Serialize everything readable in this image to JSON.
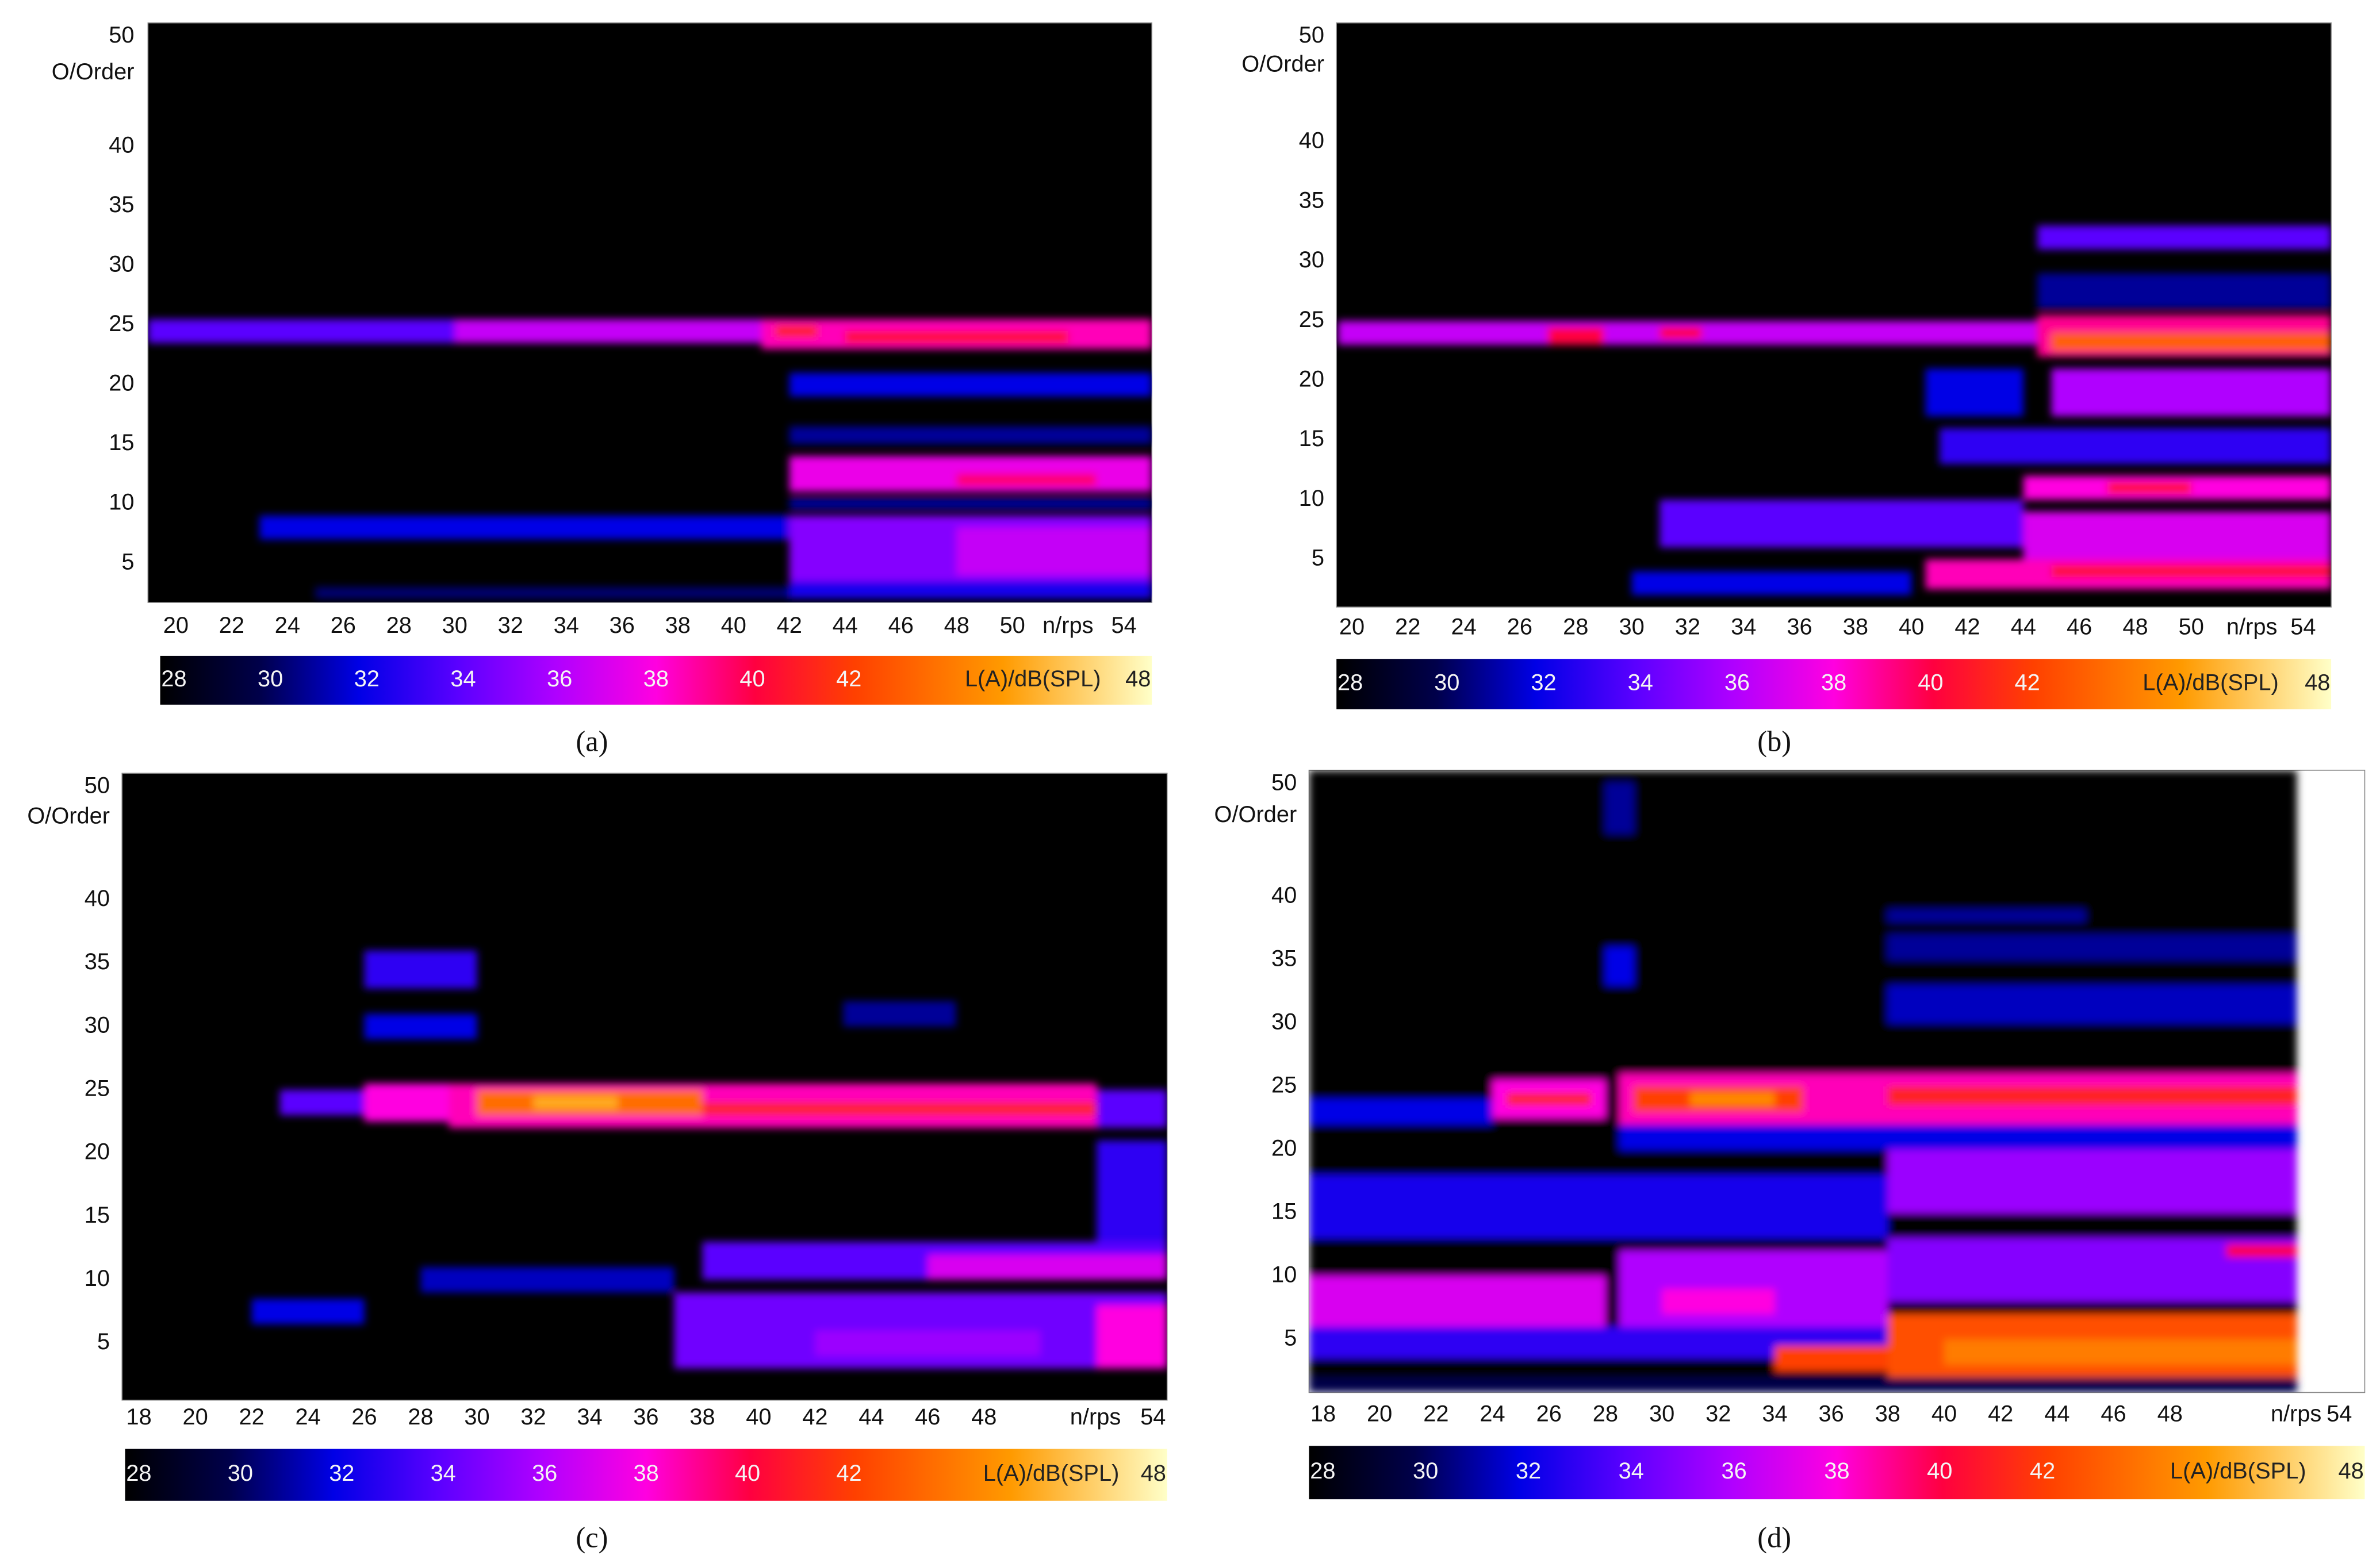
{
  "chart_data": [
    {
      "type": "heatmap",
      "caption": "(a)",
      "ylabel": "O/Order",
      "xlabel": "n/rps",
      "colorbar_label": "L(A)/dB(SPL)",
      "background": "#000000",
      "xlim": [
        19,
        55
      ],
      "xticks": [
        20,
        22,
        24,
        26,
        28,
        30,
        32,
        34,
        36,
        38,
        40,
        42,
        44,
        46,
        48,
        50,
        54
      ],
      "ylim": [
        1.7,
        50.4
      ],
      "yticks": [
        50,
        40,
        35,
        30,
        25,
        20,
        15,
        10,
        5
      ],
      "clim": [
        28,
        48
      ],
      "cticks": [
        28,
        30,
        32,
        34,
        36,
        38,
        40,
        42,
        48
      ],
      "colormap": [
        {
          "value": 28,
          "color": "#000000"
        },
        {
          "value": 30,
          "color": "#00004a"
        },
        {
          "value": 32,
          "color": "#0000e6"
        },
        {
          "value": 34,
          "color": "#5a00ff"
        },
        {
          "value": 36,
          "color": "#b000ff"
        },
        {
          "value": 38,
          "color": "#ff00e0"
        },
        {
          "value": 40,
          "color": "#ff0040"
        },
        {
          "value": 42,
          "color": "#ff4000"
        },
        {
          "value": 45,
          "color": "#ff9a00"
        },
        {
          "value": 48,
          "color": "#ffffc8"
        }
      ],
      "bands": [
        {
          "x": [
            19,
            30
          ],
          "order": [
            23.5,
            25.5
          ],
          "level": 34
        },
        {
          "x": [
            30,
            42
          ],
          "order": [
            23.5,
            25.5
          ],
          "level": 36.5
        },
        {
          "x": [
            41,
            55
          ],
          "order": [
            23,
            25.5
          ],
          "level": 38.5
        },
        {
          "x": [
            44,
            52
          ],
          "order": [
            23.5,
            24.5
          ],
          "level": 40.5
        },
        {
          "x": [
            41.5,
            43
          ],
          "order": [
            24,
            25
          ],
          "level": 41
        },
        {
          "x": [
            42,
            55
          ],
          "order": [
            19,
            21
          ],
          "level": 32
        },
        {
          "x": [
            42,
            55
          ],
          "order": [
            15,
            16.5
          ],
          "level": 31
        },
        {
          "x": [
            42,
            55
          ],
          "order": [
            11,
            14
          ],
          "level": 37.5
        },
        {
          "x": [
            48,
            53
          ],
          "order": [
            11.5,
            12.5
          ],
          "level": 39.5
        },
        {
          "x": [
            23,
            42
          ],
          "order": [
            7,
            9
          ],
          "level": 32
        },
        {
          "x": [
            42,
            55
          ],
          "order": [
            3,
            9
          ],
          "level": 35
        },
        {
          "x": [
            48,
            55
          ],
          "order": [
            4,
            8
          ],
          "level": 36.5
        },
        {
          "x": [
            42,
            55
          ],
          "order": [
            9.5,
            10.5
          ],
          "level": 31
        },
        {
          "x": [
            25,
            42
          ],
          "order": [
            2,
            3
          ],
          "level": 30.5
        },
        {
          "x": [
            42,
            55
          ],
          "order": [
            2,
            3.5
          ],
          "level": 32.5
        }
      ]
    },
    {
      "type": "heatmap",
      "caption": "(b)",
      "ylabel": "O/Order",
      "xlabel": "n/rps",
      "colorbar_label": "L(A)/dB(SPL)",
      "background": "#000000",
      "xlim": [
        19.45,
        55
      ],
      "xticks": [
        20,
        22,
        24,
        26,
        28,
        30,
        32,
        34,
        36,
        38,
        40,
        42,
        44,
        46,
        48,
        50,
        54
      ],
      "ylim": [
        1,
        50
      ],
      "yticks": [
        50,
        40,
        35,
        30,
        25,
        20,
        15,
        10,
        5
      ],
      "clim": [
        28,
        48
      ],
      "cticks": [
        28,
        30,
        32,
        34,
        36,
        38,
        40,
        42,
        48
      ],
      "colormap": [
        {
          "value": 28,
          "color": "#000000"
        },
        {
          "value": 30,
          "color": "#00004a"
        },
        {
          "value": 32,
          "color": "#0000e6"
        },
        {
          "value": 34,
          "color": "#5a00ff"
        },
        {
          "value": 36,
          "color": "#b000ff"
        },
        {
          "value": 38,
          "color": "#ff00e0"
        },
        {
          "value": 40,
          "color": "#ff0040"
        },
        {
          "value": 42,
          "color": "#ff4000"
        },
        {
          "value": 45,
          "color": "#ff9a00"
        },
        {
          "value": 48,
          "color": "#ffffc8"
        }
      ],
      "bands": [
        {
          "x": [
            19.5,
            44.5
          ],
          "order": [
            23,
            25
          ],
          "level": 36.5
        },
        {
          "x": [
            27,
            29
          ],
          "order": [
            23,
            24.5
          ],
          "level": 40
        },
        {
          "x": [
            31,
            32.5
          ],
          "order": [
            23.5,
            24.5
          ],
          "level": 40
        },
        {
          "x": [
            44.5,
            55
          ],
          "order": [
            22,
            25.5
          ],
          "level": 39
        },
        {
          "x": [
            45,
            55
          ],
          "order": [
            22.5,
            24
          ],
          "level": 43
        },
        {
          "x": [
            45,
            55
          ],
          "order": [
            17,
            21
          ],
          "level": 36
        },
        {
          "x": [
            44.5,
            55
          ],
          "order": [
            31,
            33
          ],
          "level": 34
        },
        {
          "x": [
            44.5,
            55
          ],
          "order": [
            26,
            29
          ],
          "level": 31
        },
        {
          "x": [
            41,
            55
          ],
          "order": [
            13,
            16
          ],
          "level": 33
        },
        {
          "x": [
            44,
            55
          ],
          "order": [
            10,
            12
          ],
          "level": 38
        },
        {
          "x": [
            47,
            50
          ],
          "order": [
            10.5,
            11.5
          ],
          "level": 40.5
        },
        {
          "x": [
            31,
            44
          ],
          "order": [
            6,
            10
          ],
          "level": 34
        },
        {
          "x": [
            44,
            55
          ],
          "order": [
            5,
            9
          ],
          "level": 37
        },
        {
          "x": [
            40.5,
            55
          ],
          "order": [
            2.5,
            5
          ],
          "level": 38.5
        },
        {
          "x": [
            45,
            55
          ],
          "order": [
            3.5,
            4.5
          ],
          "level": 40.5
        },
        {
          "x": [
            30,
            40
          ],
          "order": [
            2,
            4
          ],
          "level": 32
        },
        {
          "x": [
            40.5,
            44
          ],
          "order": [
            17,
            21
          ],
          "level": 32
        }
      ]
    },
    {
      "type": "heatmap",
      "caption": "(c)",
      "ylabel": "O/Order",
      "xlabel": "n/rps",
      "colorbar_label": "L(A)/dB(SPL)",
      "background": "#000000",
      "xlim": [
        17.4,
        54.5
      ],
      "xticks": [
        18,
        20,
        22,
        24,
        26,
        28,
        30,
        32,
        34,
        36,
        38,
        40,
        42,
        44,
        46,
        48,
        54
      ],
      "ylim": [
        0.5,
        50
      ],
      "yticks": [
        50,
        40,
        35,
        30,
        25,
        20,
        15,
        10,
        5
      ],
      "clim": [
        28,
        48
      ],
      "cticks": [
        28,
        30,
        32,
        34,
        36,
        38,
        40,
        42,
        48
      ],
      "colormap": [
        {
          "value": 28,
          "color": "#000000"
        },
        {
          "value": 30,
          "color": "#00004a"
        },
        {
          "value": 32,
          "color": "#0000e6"
        },
        {
          "value": 34,
          "color": "#5a00ff"
        },
        {
          "value": 36,
          "color": "#b000ff"
        },
        {
          "value": 38,
          "color": "#ff00e0"
        },
        {
          "value": 40,
          "color": "#ff0040"
        },
        {
          "value": 42,
          "color": "#ff4000"
        },
        {
          "value": 45,
          "color": "#ff9a00"
        },
        {
          "value": 48,
          "color": "#ffffc8"
        }
      ],
      "bands": [
        {
          "x": [
            23,
            26
          ],
          "order": [
            23,
            25
          ],
          "level": 34
        },
        {
          "x": [
            26,
            29
          ],
          "order": [
            22.5,
            25.5
          ],
          "level": 38
        },
        {
          "x": [
            29,
            52
          ],
          "order": [
            22,
            25.5
          ],
          "level": 38.5
        },
        {
          "x": [
            30,
            38
          ],
          "order": [
            23,
            25
          ],
          "level": 43.5
        },
        {
          "x": [
            32,
            35
          ],
          "order": [
            23.5,
            24.5
          ],
          "level": 45.5
        },
        {
          "x": [
            38,
            52
          ],
          "order": [
            23,
            24
          ],
          "level": 41
        },
        {
          "x": [
            52,
            54.5
          ],
          "order": [
            22,
            25
          ],
          "level": 34
        },
        {
          "x": [
            26,
            30
          ],
          "order": [
            33,
            36
          ],
          "level": 33
        },
        {
          "x": [
            26,
            30
          ],
          "order": [
            29,
            31
          ],
          "level": 32
        },
        {
          "x": [
            43,
            47
          ],
          "order": [
            30,
            32
          ],
          "level": 31
        },
        {
          "x": [
            38,
            54.5
          ],
          "order": [
            10,
            13
          ],
          "level": 34
        },
        {
          "x": [
            46,
            54.5
          ],
          "order": [
            10,
            12
          ],
          "level": 37
        },
        {
          "x": [
            37,
            54.5
          ],
          "order": [
            3,
            9
          ],
          "level": 34.5
        },
        {
          "x": [
            42,
            50
          ],
          "order": [
            4,
            6
          ],
          "level": 35.5
        },
        {
          "x": [
            52,
            54.5
          ],
          "order": [
            3,
            8
          ],
          "level": 38
        },
        {
          "x": [
            52,
            54.5
          ],
          "order": [
            13,
            21
          ],
          "level": 33
        },
        {
          "x": [
            28,
            37
          ],
          "order": [
            9,
            11
          ],
          "level": 31.5
        },
        {
          "x": [
            22,
            26
          ],
          "order": [
            6.5,
            8.5
          ],
          "level": 32
        }
      ]
    },
    {
      "type": "heatmap",
      "caption": "(d)",
      "ylabel": "O/Order",
      "xlabel": "n/rps",
      "colorbar_label": "L(A)/dB(SPL)",
      "background": "#ffffff",
      "xlim": [
        17.5,
        54.9
      ],
      "xticks": [
        18,
        20,
        22,
        24,
        26,
        28,
        30,
        32,
        34,
        36,
        38,
        40,
        42,
        44,
        46,
        48,
        54
      ],
      "ylim": [
        0.8,
        50
      ],
      "yticks": [
        50,
        40,
        35,
        30,
        25,
        20,
        15,
        10,
        5
      ],
      "clim": [
        28,
        48
      ],
      "cticks": [
        28,
        30,
        32,
        34,
        36,
        38,
        40,
        42,
        48
      ],
      "colormap": [
        {
          "value": 28,
          "color": "#000000"
        },
        {
          "value": 30,
          "color": "#00004a"
        },
        {
          "value": 32,
          "color": "#0000e6"
        },
        {
          "value": 34,
          "color": "#5a00ff"
        },
        {
          "value": 36,
          "color": "#b000ff"
        },
        {
          "value": 38,
          "color": "#ff00e0"
        },
        {
          "value": 40,
          "color": "#ff0040"
        },
        {
          "value": 42,
          "color": "#ff4000"
        },
        {
          "value": 45,
          "color": "#ff9a00"
        },
        {
          "value": 48,
          "color": "#ffffc8"
        }
      ],
      "bands": [
        {
          "x": [
            17.5,
            52.5
          ],
          "order": [
            0.8,
            50
          ],
          "level": 28
        },
        {
          "x": [
            24,
            28
          ],
          "order": [
            22.5,
            25.5
          ],
          "level": 38
        },
        {
          "x": [
            24.5,
            27.5
          ],
          "order": [
            23.5,
            24.5
          ],
          "level": 41
        },
        {
          "x": [
            28.5,
            52.5
          ],
          "order": [
            22,
            26
          ],
          "level": 38.5
        },
        {
          "x": [
            29,
            35
          ],
          "order": [
            23,
            25
          ],
          "level": 42
        },
        {
          "x": [
            31,
            34
          ],
          "order": [
            23.5,
            24.5
          ],
          "level": 44.5
        },
        {
          "x": [
            38,
            52.5
          ],
          "order": [
            23.5,
            25
          ],
          "level": 41
        },
        {
          "x": [
            17.5,
            24
          ],
          "order": [
            22,
            24
          ],
          "level": 32
        },
        {
          "x": [
            28.5,
            52.5
          ],
          "order": [
            20,
            22
          ],
          "level": 32
        },
        {
          "x": [
            38,
            52.5
          ],
          "order": [
            15,
            20
          ],
          "level": 35.5
        },
        {
          "x": [
            17.5,
            38
          ],
          "order": [
            13,
            18
          ],
          "level": 32.5
        },
        {
          "x": [
            38,
            52.5
          ],
          "order": [
            8,
            13
          ],
          "level": 35
        },
        {
          "x": [
            50,
            52.5
          ],
          "order": [
            11.5,
            12.5
          ],
          "level": 40
        },
        {
          "x": [
            17.5,
            28
          ],
          "order": [
            6,
            10
          ],
          "level": 37
        },
        {
          "x": [
            28.5,
            38
          ],
          "order": [
            6,
            12
          ],
          "level": 36
        },
        {
          "x": [
            30,
            34
          ],
          "order": [
            7,
            9
          ],
          "level": 38
        },
        {
          "x": [
            17.5,
            38
          ],
          "order": [
            3.5,
            6
          ],
          "level": 33
        },
        {
          "x": [
            34,
            38
          ],
          "order": [
            2.5,
            4.5
          ],
          "level": 42
        },
        {
          "x": [
            38,
            52.5
          ],
          "order": [
            2,
            7
          ],
          "level": 42.5
        },
        {
          "x": [
            40,
            52.5
          ],
          "order": [
            3,
            5
          ],
          "level": 44
        },
        {
          "x": [
            38,
            52.5
          ],
          "order": [
            30,
            33
          ],
          "level": 31.5
        },
        {
          "x": [
            38,
            52.5
          ],
          "order": [
            35,
            37
          ],
          "level": 31
        },
        {
          "x": [
            28,
            29
          ],
          "order": [
            33,
            36
          ],
          "level": 32
        },
        {
          "x": [
            28,
            29
          ],
          "order": [
            45,
            49
          ],
          "level": 31
        },
        {
          "x": [
            38,
            45
          ],
          "order": [
            38,
            39
          ],
          "level": 31
        },
        {
          "x": [
            17.5,
            52.5
          ],
          "order": [
            0.8,
            2
          ],
          "level": 30
        }
      ]
    }
  ]
}
